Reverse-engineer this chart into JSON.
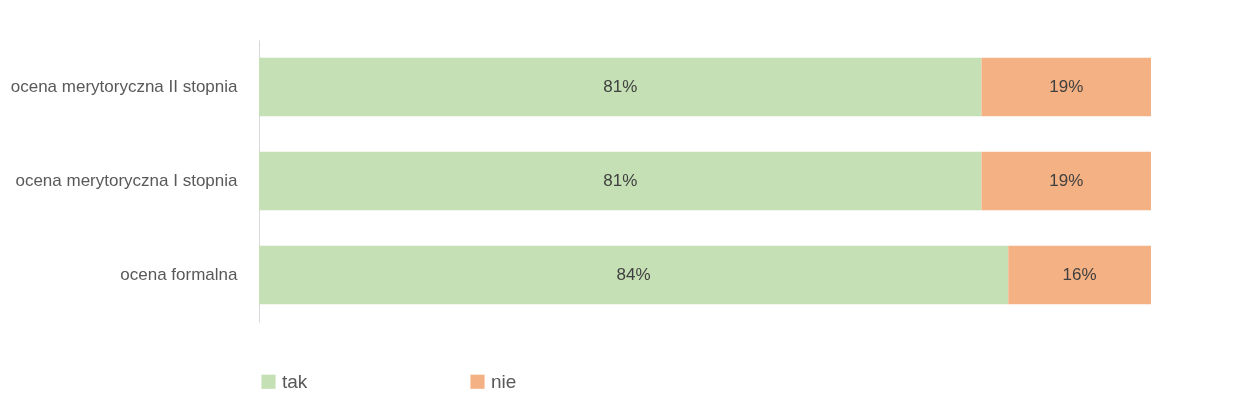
{
  "chart_data": {
    "type": "bar",
    "orientation": "horizontal",
    "stacked": true,
    "categories": [
      "ocena merytoryczna II stopnia",
      "ocena merytoryczna I stopnia",
      "ocena formalna"
    ],
    "series": [
      {
        "name": "tak",
        "color": "#c5e0b4",
        "values": [
          81,
          81,
          84
        ],
        "value_labels": [
          "81%",
          "81%",
          "84%"
        ]
      },
      {
        "name": "nie",
        "color": "#f4b183",
        "values": [
          19,
          19,
          16
        ],
        "value_labels": [
          "19%",
          "19%",
          "16%"
        ]
      }
    ],
    "legend": "bottom",
    "grid": false
  }
}
